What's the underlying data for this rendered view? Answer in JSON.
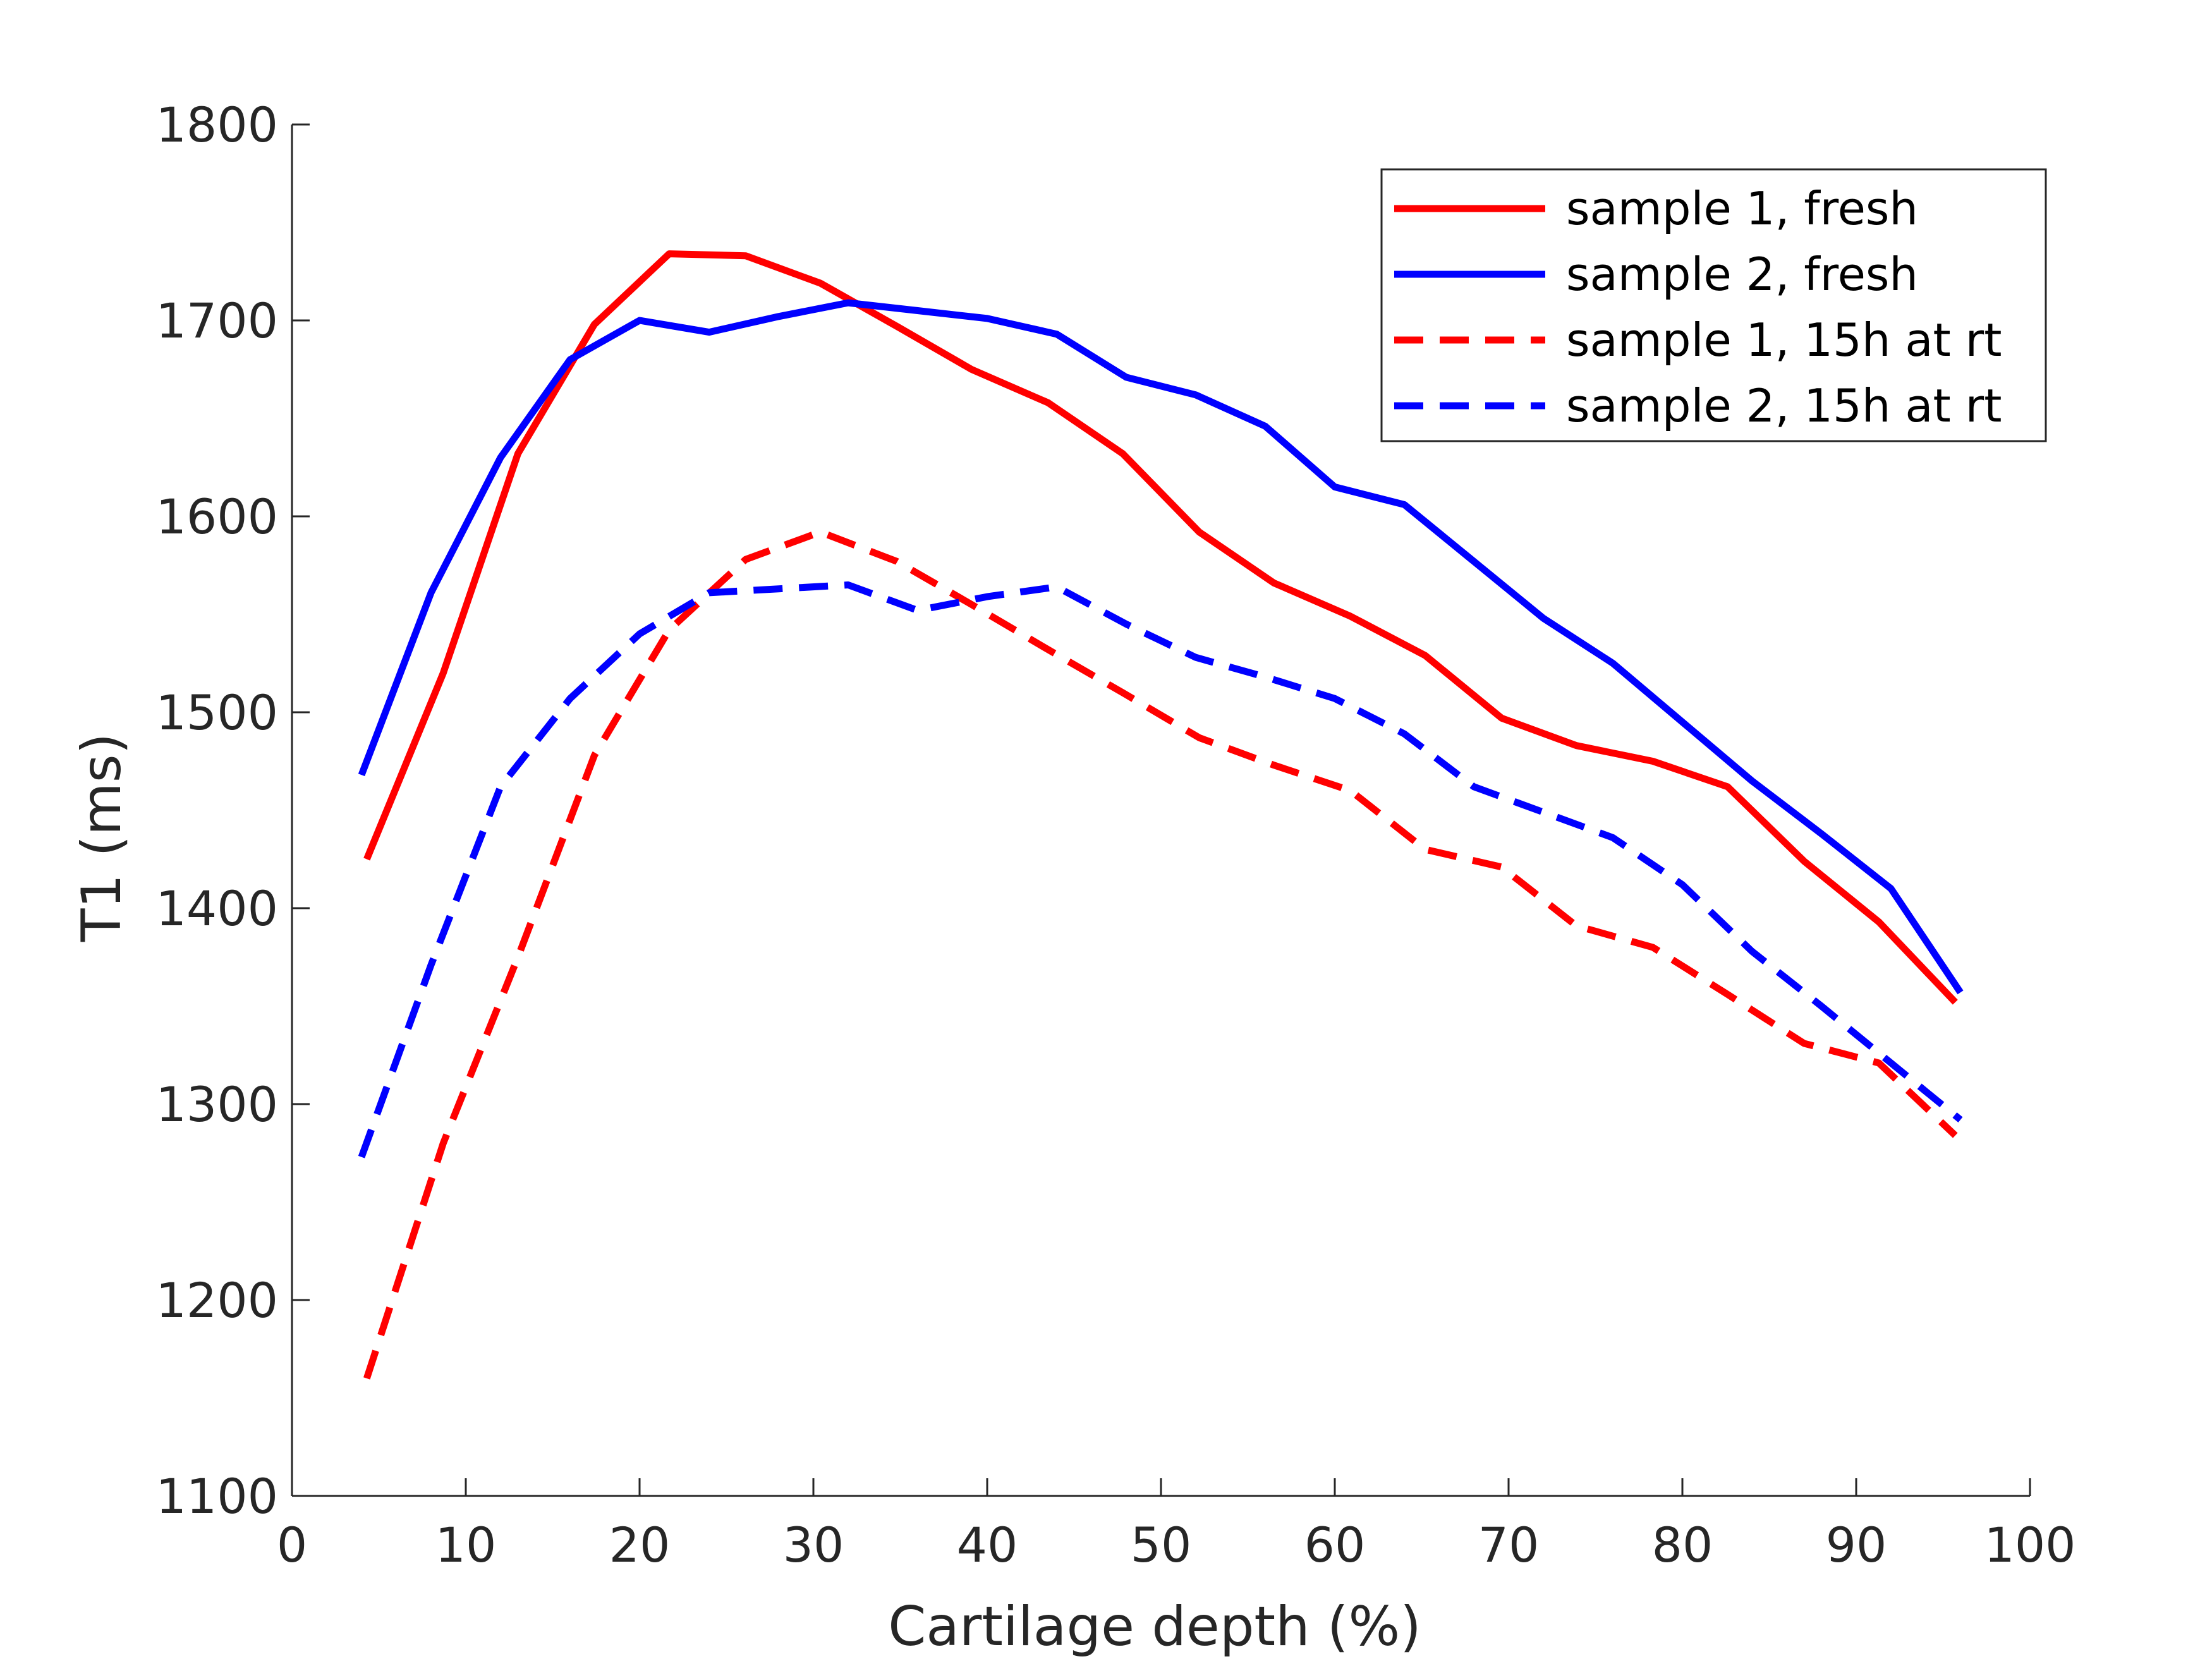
{
  "chart_data": {
    "type": "line",
    "title": "",
    "xlabel": "Cartilage depth (%)",
    "ylabel": "T1 (ms)",
    "xlim": [
      0,
      100
    ],
    "ylim": [
      1100,
      1800
    ],
    "xticks": [
      0,
      10,
      20,
      30,
      40,
      50,
      60,
      70,
      80,
      90,
      100
    ],
    "yticks": [
      1100,
      1200,
      1300,
      1400,
      1500,
      1600,
      1700,
      1800
    ],
    "grid": false,
    "legend_position": "top-right",
    "series": [
      {
        "name": "sample 1, fresh",
        "color": "#ff0000",
        "dash": "solid",
        "x": [
          4.3,
          8.7,
          13.0,
          17.4,
          21.7,
          26.1,
          30.4,
          34.8,
          39.1,
          43.5,
          47.8,
          52.2,
          56.5,
          60.9,
          65.2,
          69.6,
          73.9,
          78.3,
          82.6,
          87.0,
          91.3,
          95.7
        ],
        "y": [
          1425,
          1520,
          1632,
          1698,
          1734,
          1733,
          1719,
          1697,
          1675,
          1658,
          1632,
          1592,
          1566,
          1549,
          1529,
          1497,
          1483,
          1475,
          1462,
          1424,
          1393,
          1352
        ]
      },
      {
        "name": "sample 2, fresh",
        "color": "#0000ff",
        "dash": "solid",
        "x": [
          4.0,
          8.0,
          12.0,
          16.0,
          20.0,
          24.0,
          28.0,
          32.0,
          36.0,
          40.0,
          44.0,
          48.0,
          52.0,
          56.0,
          60.0,
          64.0,
          68.0,
          72.0,
          76.0,
          80.0,
          84.0,
          88.0,
          92.0,
          96.0
        ],
        "y": [
          1468,
          1561,
          1630,
          1680,
          1700,
          1694,
          1702,
          1709,
          1705,
          1701,
          1693,
          1671,
          1662,
          1646,
          1615,
          1606,
          1577,
          1548,
          1525,
          1495,
          1465,
          1438,
          1410,
          1357
        ]
      },
      {
        "name": "sample 1, 15h at rt",
        "color": "#ff0000",
        "dash": "dashed",
        "x": [
          4.3,
          8.7,
          13.0,
          17.4,
          21.7,
          26.1,
          30.4,
          34.8,
          39.1,
          43.5,
          47.8,
          52.2,
          56.5,
          60.9,
          65.2,
          69.6,
          73.9,
          78.3,
          82.6,
          87.0,
          91.3,
          95.7
        ],
        "y": [
          1160,
          1280,
          1375,
          1478,
          1542,
          1578,
          1592,
          1577,
          1555,
          1532,
          1510,
          1487,
          1473,
          1460,
          1430,
          1421,
          1391,
          1380,
          1356,
          1331,
          1321,
          1284
        ]
      },
      {
        "name": "sample 2, 15h at rt",
        "color": "#0000ff",
        "dash": "dashed",
        "x": [
          4.0,
          8.0,
          12.0,
          16.0,
          20.0,
          24.0,
          28.0,
          32.0,
          36.0,
          40.0,
          44.0,
          48.0,
          52.0,
          56.0,
          60.0,
          64.0,
          68.0,
          72.0,
          76.0,
          80.0,
          84.0,
          88.0,
          92.0,
          96.0
        ],
        "y": [
          1273,
          1371,
          1462,
          1507,
          1540,
          1561,
          1563,
          1565,
          1552,
          1559,
          1564,
          1545,
          1528,
          1518,
          1507,
          1489,
          1462,
          1449,
          1436,
          1412,
          1378,
          1350,
          1321,
          1292
        ]
      }
    ]
  }
}
